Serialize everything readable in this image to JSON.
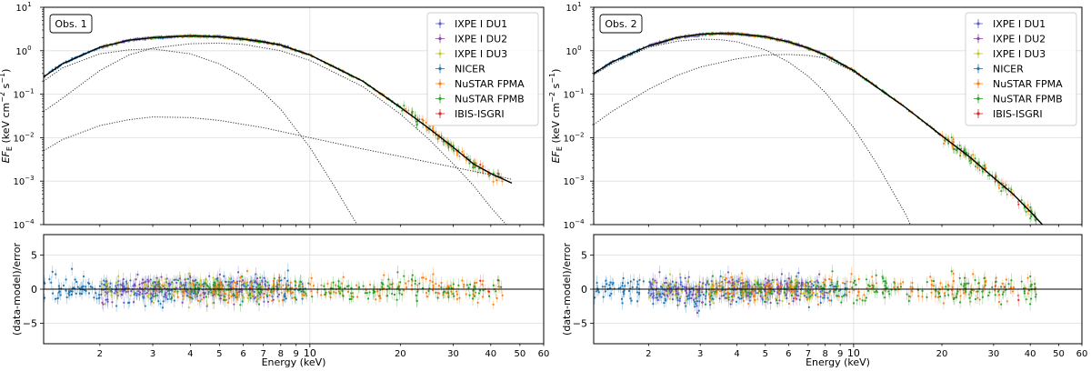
{
  "chart_data": [
    {
      "type": "scatter",
      "panel_label": "Obs. 1",
      "xlabel": "Energy (keV)",
      "ylabel_top_main": "EF",
      "ylabel_top_sub": "E",
      "ylabel_top_units": " (keV cm",
      "ylabel_top_exp": "−2",
      "ylabel_top_units2": " s",
      "ylabel_top_exp2": "−1",
      "ylabel_top_end": ")",
      "ylabel_bottom": "(data-model)/error",
      "x_scale": "log",
      "y_scale_top": "log",
      "xlim": [
        1.3,
        60
      ],
      "ylim_top": [
        0.0001,
        10
      ],
      "ylim_bottom": [
        -8,
        8
      ],
      "x_ticks": [
        "2",
        "3",
        "4",
        "5",
        "6",
        "7",
        "8",
        "9",
        "10",
        "20",
        "30",
        "40",
        "50",
        "60"
      ],
      "x_tick_values": [
        2,
        3,
        4,
        5,
        6,
        7,
        8,
        9,
        10,
        20,
        30,
        40,
        50,
        60
      ],
      "y_ticks_top": [
        {
          "base": "10",
          "exp": "1"
        },
        {
          "base": "10",
          "exp": "0"
        },
        {
          "base": "10",
          "exp": "−1"
        },
        {
          "base": "10",
          "exp": "−2"
        },
        {
          "base": "10",
          "exp": "−3"
        },
        {
          "base": "10",
          "exp": "−4"
        }
      ],
      "y_ticks_bottom": [
        "5",
        "0",
        "−5"
      ],
      "y_tick_values_bottom": [
        5,
        0,
        -5
      ],
      "grid": true,
      "legend_position": "top-right",
      "legend": [
        {
          "name": "IXPE I DU1",
          "color": "#5b5bd6"
        },
        {
          "name": "IXPE I DU2",
          "color": "#8b4aa6"
        },
        {
          "name": "IXPE I DU3",
          "color": "#c7c735"
        },
        {
          "name": "NICER",
          "color": "#1f77b4"
        },
        {
          "name": "NuSTAR FPMA",
          "color": "#ff7f0e"
        },
        {
          "name": "NuSTAR FPMB",
          "color": "#2ca02c"
        },
        {
          "name": "IBIS-ISGRI",
          "color": "#d62728"
        }
      ],
      "model_total": {
        "x": [
          1.3,
          1.5,
          2,
          2.5,
          3,
          4,
          5,
          6,
          7,
          8,
          10,
          15,
          20,
          25,
          30,
          35,
          40,
          47
        ],
        "y": [
          0.25,
          0.5,
          1.2,
          1.75,
          2.0,
          2.2,
          2.1,
          1.85,
          1.6,
          1.35,
          0.8,
          0.2,
          0.05,
          0.016,
          0.006,
          0.0025,
          0.0015,
          0.0009
        ]
      },
      "model_components": [
        {
          "x": [
            1.3,
            1.5,
            2,
            2.5,
            3,
            4,
            5,
            6,
            7,
            8,
            10,
            12,
            15,
            18
          ],
          "y": [
            0.2,
            0.4,
            0.85,
            1.05,
            1.1,
            0.85,
            0.5,
            0.25,
            0.11,
            0.045,
            0.006,
            0.0008,
            6e-05,
            4e-06
          ]
        },
        {
          "x": [
            1.3,
            1.5,
            2,
            2.5,
            3,
            4,
            5,
            6,
            8,
            10,
            15,
            20,
            25,
            30,
            35,
            40,
            45
          ],
          "y": [
            0.04,
            0.08,
            0.35,
            0.8,
            1.15,
            1.45,
            1.5,
            1.4,
            1.0,
            0.6,
            0.15,
            0.035,
            0.009,
            0.0025,
            0.0008,
            0.00025,
            0.0001
          ]
        },
        {
          "x": [
            1.3,
            1.5,
            2,
            2.5,
            3,
            4,
            5,
            7,
            10,
            15,
            20,
            30,
            40,
            47
          ],
          "y": [
            0.005,
            0.009,
            0.019,
            0.026,
            0.03,
            0.029,
            0.025,
            0.017,
            0.01,
            0.0055,
            0.0037,
            0.0021,
            0.0014,
            0.0011
          ]
        }
      ],
      "data_range_keV": [
        1.3,
        47
      ]
    },
    {
      "type": "scatter",
      "panel_label": "Obs. 2",
      "xlabel": "Energy (keV)",
      "ylabel_top_main": "EF",
      "ylabel_top_sub": "E",
      "ylabel_top_units": " (keV cm",
      "ylabel_top_exp": "−2",
      "ylabel_top_units2": " s",
      "ylabel_top_exp2": "−1",
      "ylabel_top_end": ")",
      "ylabel_bottom": "(data-model)/error",
      "x_scale": "log",
      "y_scale_top": "log",
      "xlim": [
        1.3,
        60
      ],
      "ylim_top": [
        0.0001,
        10
      ],
      "ylim_bottom": [
        -8,
        8
      ],
      "x_ticks": [
        "2",
        "3",
        "4",
        "5",
        "6",
        "7",
        "8",
        "9",
        "10",
        "20",
        "30",
        "40",
        "50",
        "60"
      ],
      "x_tick_values": [
        2,
        3,
        4,
        5,
        6,
        7,
        8,
        9,
        10,
        20,
        30,
        40,
        50,
        60
      ],
      "y_ticks_top": [
        {
          "base": "10",
          "exp": "1"
        },
        {
          "base": "10",
          "exp": "0"
        },
        {
          "base": "10",
          "exp": "−1"
        },
        {
          "base": "10",
          "exp": "−2"
        },
        {
          "base": "10",
          "exp": "−3"
        },
        {
          "base": "10",
          "exp": "−4"
        }
      ],
      "y_ticks_bottom": [
        "5",
        "0",
        "−5"
      ],
      "y_tick_values_bottom": [
        5,
        0,
        -5
      ],
      "grid": true,
      "legend_position": "top-right",
      "legend": [
        {
          "name": "IXPE I DU1",
          "color": "#5b5bd6"
        },
        {
          "name": "IXPE I DU2",
          "color": "#8b4aa6"
        },
        {
          "name": "IXPE I DU3",
          "color": "#c7c735"
        },
        {
          "name": "NICER",
          "color": "#1f77b4"
        },
        {
          "name": "NuSTAR FPMA",
          "color": "#ff7f0e"
        },
        {
          "name": "NuSTAR FPMB",
          "color": "#2ca02c"
        },
        {
          "name": "IBIS-ISGRI",
          "color": "#d62728"
        }
      ],
      "model_total": {
        "x": [
          1.3,
          1.5,
          2,
          2.5,
          3,
          3.5,
          4,
          5,
          6,
          7,
          8,
          10,
          15,
          20,
          25,
          30,
          35,
          40,
          44
        ],
        "y": [
          0.3,
          0.55,
          1.3,
          2.0,
          2.4,
          2.5,
          2.45,
          2.1,
          1.6,
          1.15,
          0.8,
          0.35,
          0.05,
          0.011,
          0.0035,
          0.0012,
          0.0005,
          0.0002,
          0.0001
        ]
      },
      "model_components": [
        {
          "x": [
            1.3,
            1.5,
            2,
            2.5,
            3,
            3.5,
            4,
            5,
            6,
            7,
            8,
            10,
            12,
            15,
            18,
            20
          ],
          "y": [
            0.28,
            0.5,
            1.2,
            1.65,
            1.85,
            1.8,
            1.6,
            1.05,
            0.55,
            0.26,
            0.11,
            0.017,
            0.0025,
            0.00018,
            1.2e-05,
            3e-06
          ]
        },
        {
          "x": [
            1.3,
            1.5,
            2,
            2.5,
            3,
            4,
            5,
            6,
            7,
            8,
            10,
            15,
            20,
            25,
            30,
            35,
            40,
            44
          ],
          "y": [
            0.02,
            0.04,
            0.13,
            0.27,
            0.42,
            0.65,
            0.8,
            0.82,
            0.78,
            0.68,
            0.33,
            0.05,
            0.011,
            0.0035,
            0.0012,
            0.0005,
            0.0002,
            0.0001
          ]
        }
      ],
      "data_range_keV": [
        1.3,
        44
      ]
    }
  ]
}
